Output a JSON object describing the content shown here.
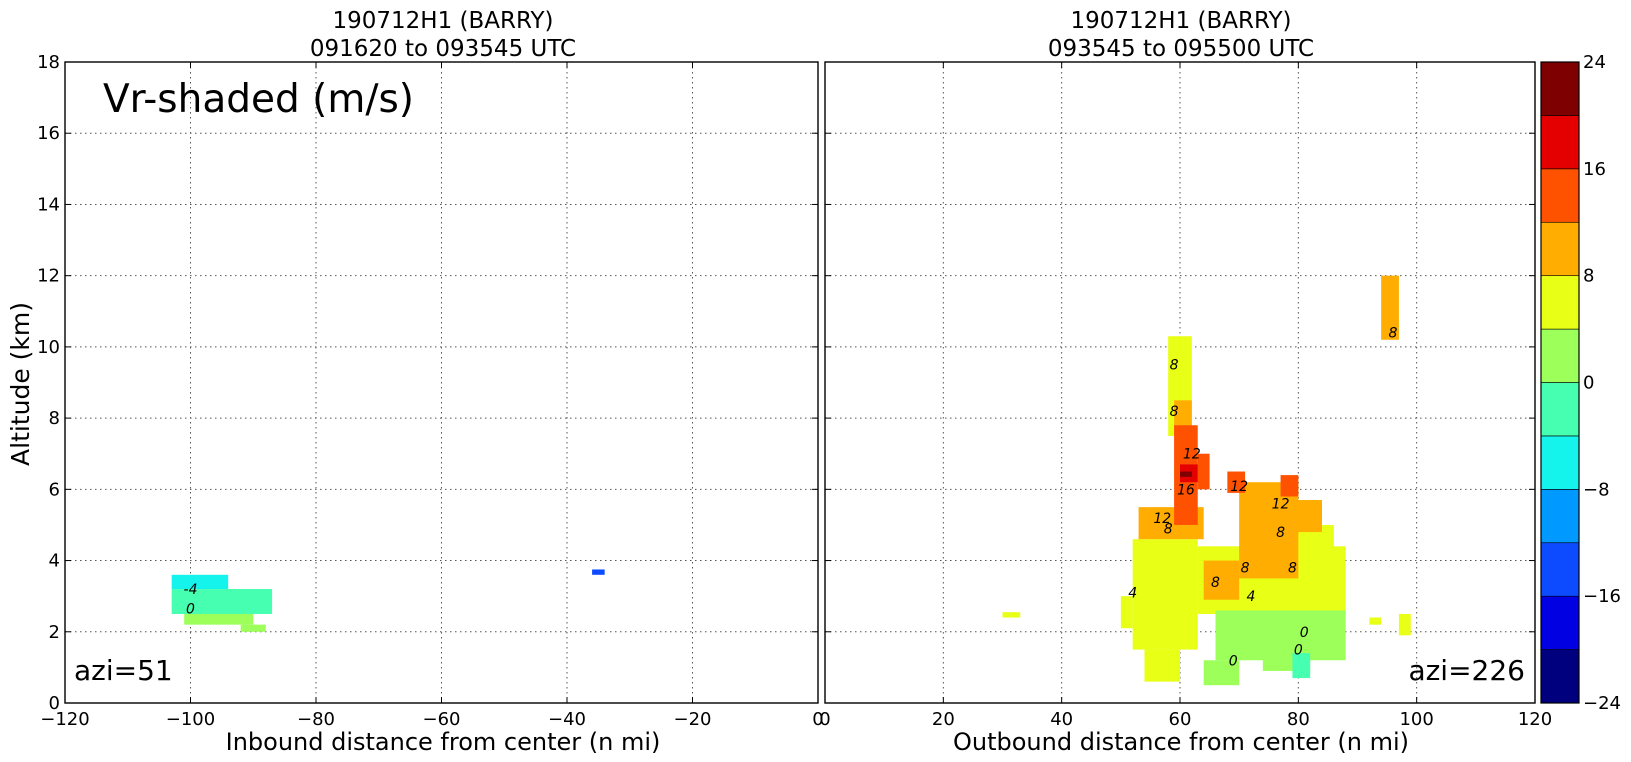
{
  "figure": {
    "ylabel": "Altitude (km)",
    "vr_label": "Vr-shaded (m/s)"
  },
  "chart_data": [
    {
      "type": "heatmap",
      "panel": "inbound",
      "title_line1": "190712H1 (BARRY)",
      "title_line2": "091620 to 093545 UTC",
      "xlabel": "Inbound distance from center (n mi)",
      "ylabel": "Altitude (km)",
      "xlim": [
        -120,
        0
      ],
      "ylim": [
        0,
        18
      ],
      "xticks": [
        -120,
        -100,
        -80,
        -60,
        -40,
        -20,
        0
      ],
      "yticks": [
        0,
        2,
        4,
        6,
        8,
        10,
        12,
        14,
        16,
        18
      ],
      "grid": true,
      "annotation": "azi=51",
      "cells": [
        {
          "x0": -103,
          "x1": -94,
          "y0": 3.2,
          "y1": 3.6,
          "value": -6
        },
        {
          "x0": -103,
          "x1": -87,
          "y0": 2.5,
          "y1": 3.2,
          "value": -2
        },
        {
          "x0": -101,
          "x1": -90,
          "y0": 2.2,
          "y1": 2.5,
          "value": 2
        },
        {
          "x0": -92,
          "x1": -88,
          "y0": 2.0,
          "y1": 2.2,
          "value": 2
        },
        {
          "x0": -36,
          "x1": -34,
          "y0": 3.6,
          "y1": 3.75,
          "value": -14
        }
      ],
      "contour_labels": [
        {
          "x": -100,
          "y": 3.2,
          "text": "-4"
        },
        {
          "x": -100,
          "y": 2.65,
          "text": "0"
        }
      ]
    },
    {
      "type": "heatmap",
      "panel": "outbound",
      "title_line1": "190712H1 (BARRY)",
      "title_line2": "093545 to 095500 UTC",
      "xlabel": "Outbound distance from center (n mi)",
      "ylabel": "",
      "xlim": [
        0,
        120
      ],
      "ylim": [
        0,
        18
      ],
      "xticks": [
        0,
        20,
        40,
        60,
        80,
        100,
        120
      ],
      "yticks": [
        0,
        2,
        4,
        6,
        8,
        10,
        12,
        14,
        16,
        18
      ],
      "grid": true,
      "annotation": "azi=226",
      "cells": [
        {
          "x0": 50,
          "x1": 52,
          "y0": 2.1,
          "y1": 3.0,
          "value": 6
        },
        {
          "x0": 52,
          "x1": 63,
          "y0": 1.5,
          "y1": 4.6,
          "value": 6
        },
        {
          "x0": 54,
          "x1": 60,
          "y0": 0.6,
          "y1": 1.5,
          "value": 6
        },
        {
          "x0": 63,
          "x1": 88,
          "y0": 2.5,
          "y1": 4.4,
          "value": 6
        },
        {
          "x0": 74,
          "x1": 86,
          "y0": 4.0,
          "y1": 5.0,
          "value": 6
        },
        {
          "x0": 58,
          "x1": 62,
          "y0": 7.5,
          "y1": 10.3,
          "value": 6
        },
        {
          "x0": 30,
          "x1": 33,
          "y0": 2.4,
          "y1": 2.55,
          "value": 6
        },
        {
          "x0": 92,
          "x1": 94,
          "y0": 2.2,
          "y1": 2.4,
          "value": 6
        },
        {
          "x0": 97,
          "x1": 99,
          "y0": 1.9,
          "y1": 2.5,
          "value": 6
        },
        {
          "x0": 66,
          "x1": 88,
          "y0": 1.2,
          "y1": 2.6,
          "value": 2
        },
        {
          "x0": 64,
          "x1": 70,
          "y0": 0.5,
          "y1": 1.2,
          "value": 2
        },
        {
          "x0": 74,
          "x1": 82,
          "y0": 0.9,
          "y1": 1.6,
          "value": 2
        },
        {
          "x0": 79,
          "x1": 82,
          "y0": 0.7,
          "y1": 1.4,
          "value": -2
        },
        {
          "x0": 53,
          "x1": 64,
          "y0": 4.6,
          "y1": 5.5,
          "value": 10
        },
        {
          "x0": 64,
          "x1": 70,
          "y0": 2.9,
          "y1": 4.0,
          "value": 10
        },
        {
          "x0": 70,
          "x1": 80,
          "y0": 3.5,
          "y1": 6.2,
          "value": 10
        },
        {
          "x0": 76,
          "x1": 84,
          "y0": 4.8,
          "y1": 5.7,
          "value": 10
        },
        {
          "x0": 59,
          "x1": 62,
          "y0": 7.5,
          "y1": 8.5,
          "value": 10
        },
        {
          "x0": 94,
          "x1": 97,
          "y0": 10.2,
          "y1": 12.0,
          "value": 10
        },
        {
          "x0": 59,
          "x1": 63,
          "y0": 5.0,
          "y1": 7.8,
          "value": 14
        },
        {
          "x0": 63,
          "x1": 65,
          "y0": 6.0,
          "y1": 7.0,
          "value": 14
        },
        {
          "x0": 68,
          "x1": 71,
          "y0": 5.9,
          "y1": 6.5,
          "value": 14
        },
        {
          "x0": 77,
          "x1": 80,
          "y0": 5.8,
          "y1": 6.4,
          "value": 14
        },
        {
          "x0": 60,
          "x1": 63,
          "y0": 6.2,
          "y1": 6.7,
          "value": 18
        },
        {
          "x0": 60,
          "x1": 62,
          "y0": 6.35,
          "y1": 6.5,
          "value": 22
        }
      ],
      "contour_labels": [
        {
          "x": 59,
          "y": 9.5,
          "text": "8"
        },
        {
          "x": 59,
          "y": 8.2,
          "text": "8"
        },
        {
          "x": 62,
          "y": 7.0,
          "text": "12"
        },
        {
          "x": 61,
          "y": 6.0,
          "text": "16"
        },
        {
          "x": 57,
          "y": 5.2,
          "text": "12"
        },
        {
          "x": 58,
          "y": 4.9,
          "text": "8"
        },
        {
          "x": 70,
          "y": 6.1,
          "text": "12"
        },
        {
          "x": 77,
          "y": 5.6,
          "text": "12"
        },
        {
          "x": 71,
          "y": 3.8,
          "text": "8"
        },
        {
          "x": 77,
          "y": 4.8,
          "text": "8"
        },
        {
          "x": 79,
          "y": 3.8,
          "text": "8"
        },
        {
          "x": 66,
          "y": 3.4,
          "text": "8"
        },
        {
          "x": 52,
          "y": 3.1,
          "text": "4"
        },
        {
          "x": 72,
          "y": 3.0,
          "text": "4"
        },
        {
          "x": 69,
          "y": 1.2,
          "text": "0"
        },
        {
          "x": 80,
          "y": 1.5,
          "text": "0"
        },
        {
          "x": 81,
          "y": 2.0,
          "text": "0"
        },
        {
          "x": 96,
          "y": 10.4,
          "text": "8"
        }
      ]
    }
  ],
  "colorbar": {
    "levels": [
      -24,
      -20,
      -16,
      -12,
      -8,
      -4,
      0,
      4,
      8,
      12,
      16,
      20,
      24
    ],
    "colors": [
      "#00007f",
      "#0000e3",
      "#0c4bff",
      "#0099ff",
      "#14f4ec",
      "#46ffb0",
      "#9cff5a",
      "#e8ff16",
      "#ffad00",
      "#ff5200",
      "#e40000",
      "#7f0000"
    ],
    "tick_labels": [
      "24",
      "16",
      "8",
      "0",
      "−8",
      "−16",
      "−24"
    ],
    "tick_values": [
      24,
      16,
      8,
      0,
      -8,
      -16,
      -24
    ]
  }
}
